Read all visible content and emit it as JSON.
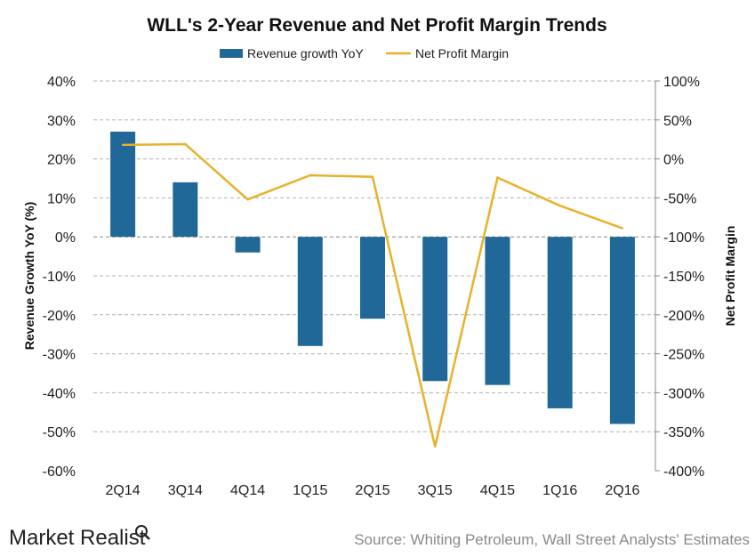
{
  "chart_data": {
    "type": "bar+line",
    "title": "WLL's 2-Year Revenue and Net Profit Margin Trends",
    "categories": [
      "2Q14",
      "3Q14",
      "4Q14",
      "1Q15",
      "2Q15",
      "3Q15",
      "4Q15",
      "1Q16",
      "2Q16"
    ],
    "series": [
      {
        "name": "Revenue growth YoY",
        "type": "bar",
        "axis": "left",
        "color": "#1F6898",
        "values": [
          27,
          14,
          -4,
          -28,
          -21,
          -37,
          -38,
          -44,
          -48
        ]
      },
      {
        "name": "Net Profit Margin",
        "type": "line",
        "axis": "right",
        "color": "#E8B12A",
        "values": [
          18,
          19,
          -52,
          -21,
          -23,
          -369,
          -24,
          -60,
          -89
        ]
      }
    ],
    "ylabel": "Revenue Growth YoY  (%)",
    "y2label": "Net Profit Margin",
    "ylim": [
      -60,
      40
    ],
    "y2lim": [
      -400,
      100
    ],
    "yticks": [
      "40%",
      "30%",
      "20%",
      "10%",
      "0%",
      "-10%",
      "-20%",
      "-30%",
      "-40%",
      "-50%",
      "-60%"
    ],
    "y2ticks": [
      "100%",
      "50%",
      "0%",
      "-50%",
      "-100%",
      "-150%",
      "-200%",
      "-250%",
      "-300%",
      "-350%",
      "-400%"
    ],
    "grid": true,
    "legend": "top"
  },
  "footer": {
    "logo": "Market Realist",
    "source": "Source: Whiting Petroleum, Wall Street Analysts' Estimates"
  }
}
